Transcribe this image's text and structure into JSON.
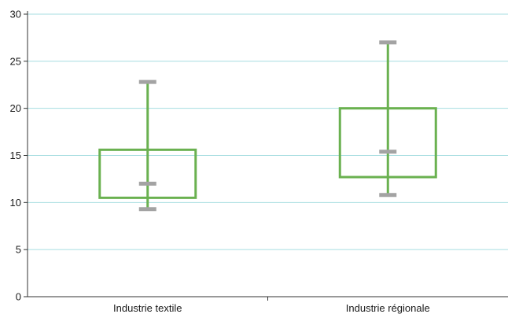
{
  "chart_data": {
    "type": "box",
    "categories": [
      "Industrie textile",
      "Industrie régionale"
    ],
    "series": [
      {
        "category": "Industrie textile",
        "whisker_low": 9.3,
        "q1": 10.5,
        "median": 12.0,
        "q3": 15.6,
        "whisker_high": 22.8
      },
      {
        "category": "Industrie régionale",
        "whisker_low": 10.8,
        "q1": 12.7,
        "median": 15.4,
        "q3": 20.0,
        "whisker_high": 27.0
      }
    ],
    "yticks": [
      "0",
      "5",
      "10",
      "15",
      "20",
      "25",
      "30"
    ],
    "ylim": [
      0,
      30
    ],
    "grid": true,
    "legend": "none",
    "colors": {
      "box": "#6ab150",
      "caps": "#a3a3a3",
      "grid": "#a6dde0",
      "axis": "#333333"
    }
  }
}
